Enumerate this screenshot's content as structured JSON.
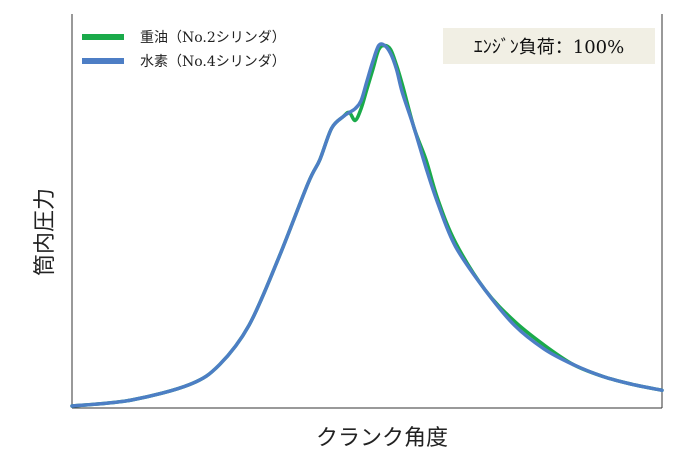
{
  "chart_data": {
    "type": "line",
    "title": "",
    "xlabel": "クランク角度",
    "ylabel": "筒内圧力",
    "xlim": [
      0,
      100
    ],
    "ylim": [
      0,
      100
    ],
    "grid": false,
    "axis_ticks": false,
    "legend_position": "top-left",
    "annotation": "ｴﾝｼﾞﾝ負荷：100%",
    "series": [
      {
        "name": "重油（No.2シリンダ）",
        "color": "#1aaa4a",
        "x": [
          0,
          10,
          20,
          25,
          30,
          35,
          40,
          42,
          44,
          46,
          47,
          48,
          49,
          50,
          51,
          52,
          53,
          54,
          55,
          56,
          58,
          60,
          62,
          65,
          70,
          75,
          80,
          85,
          90,
          95,
          100
        ],
        "values": [
          0.5,
          2,
          6,
          11,
          21,
          38,
          57,
          63,
          71,
          74,
          75,
          73,
          76,
          81,
          86,
          91,
          92,
          91,
          87,
          82,
          71,
          63,
          53,
          42,
          30,
          22,
          16,
          11,
          8,
          6,
          4.5
        ]
      },
      {
        "name": "水素（No.4シリンダ）",
        "color": "#4d7ec5",
        "x": [
          0,
          10,
          20,
          25,
          30,
          35,
          40,
          42,
          44,
          46,
          47,
          48,
          49,
          50,
          51,
          52,
          53,
          54,
          55,
          56,
          58,
          60,
          62,
          65,
          70,
          75,
          80,
          85,
          90,
          95,
          100
        ],
        "values": [
          0.5,
          2,
          6,
          11,
          21,
          38,
          57,
          63,
          71,
          74,
          75,
          76,
          78,
          83,
          88,
          92,
          92,
          90,
          86,
          80,
          71,
          61,
          52,
          41,
          30,
          21,
          15,
          11,
          8,
          6,
          4.5
        ]
      }
    ]
  }
}
